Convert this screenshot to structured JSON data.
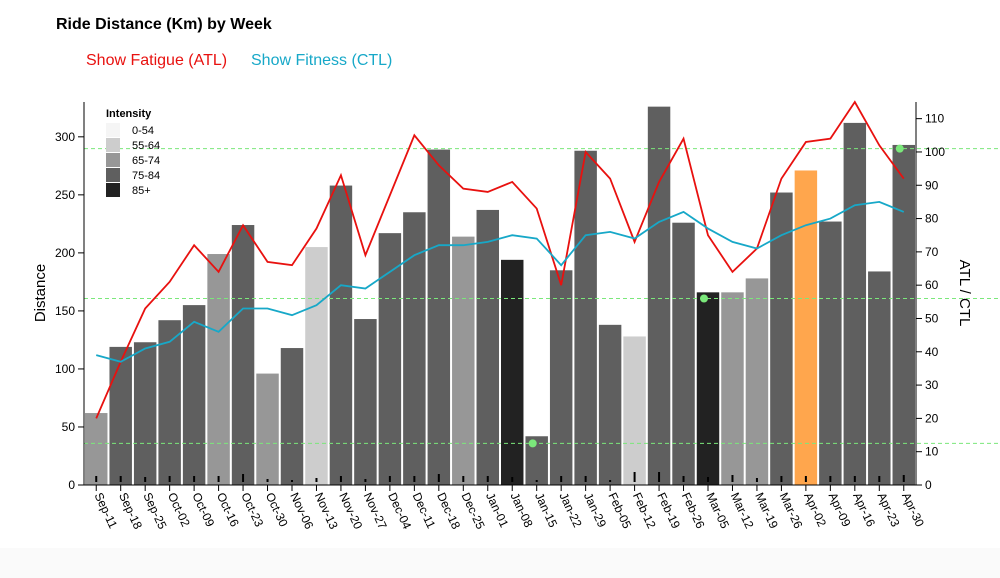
{
  "title": "Ride Distance (Km) by Week",
  "toggles": {
    "atl_label": "Show Fatigue (ATL)",
    "ctl_label": "Show Fitness (CTL)",
    "atl_color": "#e8110f",
    "ctl_color": "#17a8c8"
  },
  "chart_data": {
    "type": "bar",
    "title": "Ride Distance (Km) by Week",
    "ylabel": "Distance",
    "y2label": "ATL / CTL",
    "ylim": [
      0,
      330
    ],
    "y2lim": [
      0,
      115
    ],
    "yticks": [
      0,
      50,
      100,
      150,
      200,
      250,
      300
    ],
    "y2ticks": [
      0,
      10,
      20,
      30,
      40,
      50,
      60,
      70,
      80,
      90,
      100,
      110
    ],
    "grid": false,
    "legend_position": "top-left",
    "categories": [
      "Sep-11",
      "Sep-18",
      "Sep-25",
      "Oct-02",
      "Oct-09",
      "Oct-16",
      "Oct-23",
      "Oct-30",
      "Nov-06",
      "Nov-13",
      "Nov-20",
      "Nov-27",
      "Dec-04",
      "Dec-11",
      "Dec-18",
      "Dec-25",
      "Jan-01",
      "Jan-08",
      "Jan-15",
      "Jan-22",
      "Jan-29",
      "Feb-05",
      "Feb-12",
      "Feb-19",
      "Feb-26",
      "Mar-05",
      "Mar-12",
      "Mar-19",
      "Mar-26",
      "Apr-02",
      "Apr-09",
      "Apr-16",
      "Apr-23",
      "Apr-30"
    ],
    "distance": [
      62,
      119,
      123,
      142,
      155,
      199,
      224,
      96,
      118,
      205,
      258,
      143,
      217,
      235,
      289,
      214,
      237,
      194,
      42,
      185,
      288,
      138,
      128,
      326,
      226,
      166,
      166,
      178,
      252,
      271,
      227,
      312,
      184,
      293
    ],
    "intensity_band": [
      "65-74",
      "75-84",
      "75-84",
      "75-84",
      "75-84",
      "65-74",
      "75-84",
      "65-74",
      "75-84",
      "55-64",
      "75-84",
      "75-84",
      "75-84",
      "75-84",
      "75-84",
      "65-74",
      "75-84",
      "85+",
      "75-84",
      "75-84",
      "75-84",
      "75-84",
      "55-64",
      "75-84",
      "75-84",
      "85+",
      "65-74",
      "65-74",
      "75-84",
      "highlight",
      "75-84",
      "75-84",
      "75-84",
      "75-84"
    ],
    "series": [
      {
        "name": "Show Fatigue (ATL)",
        "values": [
          20,
          37,
          53,
          61,
          72,
          64,
          78,
          67,
          66,
          77,
          93,
          69,
          87,
          105,
          96,
          89,
          88,
          91,
          83,
          60,
          100,
          92,
          73,
          91,
          104,
          75,
          64,
          71,
          92,
          103,
          104,
          115,
          102,
          92
        ]
      },
      {
        "name": "Show Fitness (CTL)",
        "values": [
          39,
          37,
          41,
          43,
          49,
          46,
          53,
          53,
          51,
          54,
          60,
          59,
          64,
          69,
          72,
          72,
          73,
          75,
          74,
          66,
          75,
          76,
          74,
          79,
          82,
          77,
          73,
          71,
          75,
          78,
          80,
          84,
          85,
          82
        ]
      }
    ],
    "markers": [
      6,
      6,
      5,
      6,
      6,
      6,
      8,
      3,
      2,
      4,
      6,
      3,
      6,
      6,
      8,
      6,
      6,
      5,
      2,
      6,
      6,
      2,
      10,
      10,
      6,
      5,
      7,
      4,
      6,
      6,
      6,
      6,
      6,
      7
    ],
    "reference_lines": [
      {
        "y2": 101,
        "color": "#7be87b"
      },
      {
        "y2": 56,
        "color": "#7be87b"
      },
      {
        "y2": 12.5,
        "color": "#7be87b"
      }
    ],
    "reference_points": [
      {
        "category_index": 33,
        "y2": 101
      },
      {
        "category_index": 25,
        "y2": 56
      },
      {
        "category_index": 18,
        "y2": 12.5
      }
    ],
    "legend": {
      "title": "Intensity",
      "items": [
        {
          "label": "0-54",
          "color": "#f5f5f5"
        },
        {
          "label": "55-64",
          "color": "#cdcdcd"
        },
        {
          "label": "65-74",
          "color": "#979797"
        },
        {
          "label": "75-84",
          "color": "#5f5f5f"
        },
        {
          "label": "85+",
          "color": "#222222"
        }
      ]
    },
    "colors": {
      "65-74": "#979797",
      "75-84": "#5f5f5f",
      "55-64": "#cdcdcd",
      "85+": "#222222",
      "0-54": "#f5f5f5",
      "highlight": "#ffa64d"
    }
  }
}
